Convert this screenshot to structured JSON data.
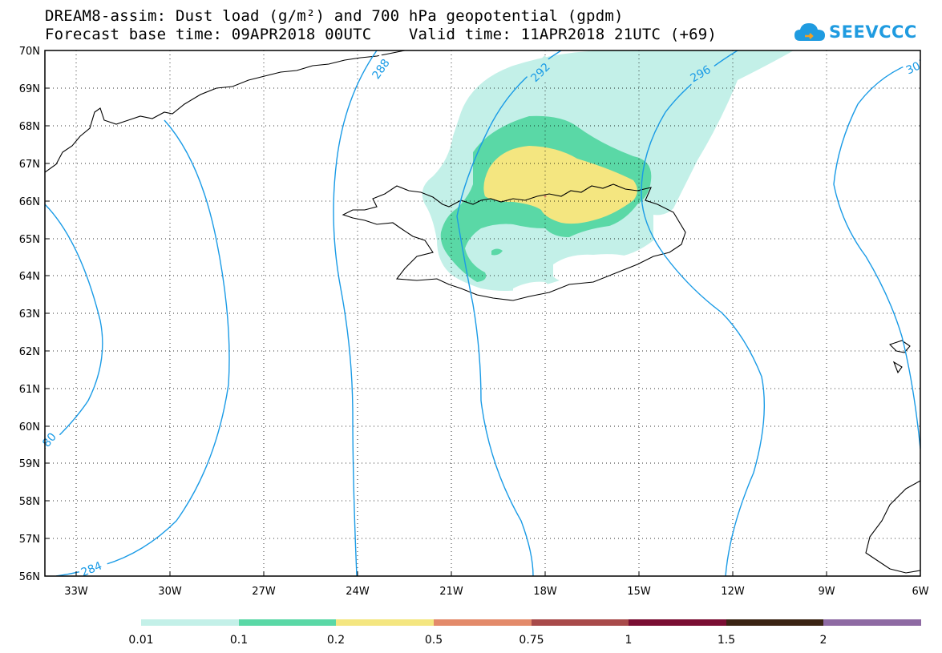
{
  "title_line1": "DREAM8-assim: Dust load (g/m²) and 700 hPa geopotential (gpdm)",
  "title_line2": "Forecast base time: 09APR2018 00UTC    Valid time: 11APR2018 21UTC (+69)",
  "logo": {
    "text": "SEEVCCC",
    "icon": "cloud-icon",
    "color": "#1f9be0"
  },
  "map": {
    "lat_labels": [
      "70N",
      "69N",
      "68N",
      "67N",
      "66N",
      "65N",
      "64N",
      "63N",
      "62N",
      "61N",
      "60N",
      "59N",
      "58N",
      "57N",
      "56N"
    ],
    "lon_labels": [
      "33W",
      "30W",
      "27W",
      "24W",
      "21W",
      "18W",
      "15W",
      "12W",
      "9W",
      "6W"
    ],
    "contour_labels": [
      "288",
      "292",
      "296",
      "30",
      "80",
      "284"
    ],
    "contour_color": "#1a9be6"
  },
  "colorbar": {
    "labels": [
      "0.01",
      "0.1",
      "0.2",
      "0.5",
      "0.75",
      "1",
      "1.5",
      "2"
    ],
    "colors": [
      "#c3f0e8",
      "#5ad8a6",
      "#f4e680",
      "#e38a6a",
      "#a84a4a",
      "#7a0e33",
      "#3b2414",
      "#8e6aa3"
    ]
  }
}
